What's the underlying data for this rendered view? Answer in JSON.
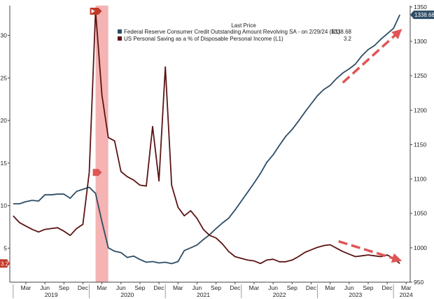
{
  "chart_data": {
    "type": "line",
    "legend": {
      "header": "Last Price",
      "placement": "top-center"
    },
    "series": [
      {
        "name": "Federal Reserve Consumer Credit Outstanding Amount Revolving SA - on 2/29/24 (R1)",
        "last_value_label": "1338.68",
        "axis": "right",
        "color": "#2e4d66",
        "x": [
          "2019-01",
          "2019-02",
          "2019-03",
          "2019-04",
          "2019-05",
          "2019-06",
          "2019-07",
          "2019-08",
          "2019-09",
          "2019-10",
          "2019-11",
          "2019-12",
          "2020-01",
          "2020-02",
          "2020-03",
          "2020-04",
          "2020-05",
          "2020-06",
          "2020-07",
          "2020-08",
          "2020-09",
          "2020-10",
          "2020-11",
          "2020-12",
          "2021-01",
          "2021-02",
          "2021-03",
          "2021-04",
          "2021-05",
          "2021-06",
          "2021-07",
          "2021-08",
          "2021-09",
          "2021-10",
          "2021-11",
          "2021-12",
          "2022-01",
          "2022-02",
          "2022-03",
          "2022-04",
          "2022-05",
          "2022-06",
          "2022-07",
          "2022-08",
          "2022-09",
          "2022-10",
          "2022-11",
          "2022-12",
          "2023-01",
          "2023-02",
          "2023-03",
          "2023-04",
          "2023-05",
          "2023-06",
          "2023-07",
          "2023-08",
          "2023-09",
          "2023-10",
          "2023-11",
          "2023-12",
          "2024-01",
          "2024-02"
        ],
        "values": [
          1064,
          1064,
          1067,
          1069,
          1068,
          1077,
          1077,
          1078,
          1078,
          1072,
          1082,
          1085,
          1088,
          1079,
          1038,
          1000,
          995,
          993,
          986,
          988,
          983,
          979,
          980,
          978,
          979,
          977,
          980,
          996,
          1000,
          1004,
          1012,
          1019,
          1028,
          1036,
          1043,
          1055,
          1068,
          1081,
          1094,
          1108,
          1124,
          1135,
          1149,
          1162,
          1172,
          1184,
          1197,
          1209,
          1221,
          1230,
          1236,
          1246,
          1254,
          1260,
          1267,
          1279,
          1288,
          1294,
          1303,
          1311,
          1319,
          1338.68
        ]
      },
      {
        "name": "US Personal Saving as a % of Disposable Personal Income (L1)",
        "last_value_label": "3.2",
        "axis": "left",
        "color": "#5c1414",
        "x": [
          "2019-01",
          "2019-02",
          "2019-03",
          "2019-04",
          "2019-05",
          "2019-06",
          "2019-07",
          "2019-08",
          "2019-09",
          "2019-10",
          "2019-11",
          "2019-12",
          "2020-01",
          "2020-02",
          "2020-03",
          "2020-04",
          "2020-05",
          "2020-06",
          "2020-07",
          "2020-08",
          "2020-09",
          "2020-10",
          "2020-11",
          "2020-12",
          "2021-01",
          "2021-02",
          "2021-03",
          "2021-04",
          "2021-05",
          "2021-06",
          "2021-07",
          "2021-08",
          "2021-09",
          "2021-10",
          "2021-11",
          "2021-12",
          "2022-01",
          "2022-02",
          "2022-03",
          "2022-04",
          "2022-05",
          "2022-06",
          "2022-07",
          "2022-08",
          "2022-09",
          "2022-10",
          "2022-11",
          "2022-12",
          "2023-01",
          "2023-02",
          "2023-03",
          "2023-04",
          "2023-05",
          "2023-06",
          "2023-07",
          "2023-08",
          "2023-09",
          "2023-10",
          "2023-11",
          "2023-12",
          "2024-01",
          "2024-02"
        ],
        "values": [
          8.8,
          8.0,
          7.6,
          7.2,
          6.9,
          7.2,
          7.3,
          7.4,
          7.0,
          6.5,
          7.3,
          7.8,
          13.9,
          32.9,
          23.0,
          18.0,
          17.6,
          14.0,
          13.4,
          13.0,
          12.4,
          12.3,
          19.3,
          12.9,
          26.3,
          12.4,
          9.8,
          8.8,
          9.4,
          8.5,
          7.2,
          6.5,
          6.2,
          5.5,
          4.6,
          4.0,
          3.8,
          3.6,
          3.5,
          3.2,
          3.6,
          3.7,
          3.4,
          3.4,
          3.6,
          4.0,
          4.5,
          4.8,
          5.1,
          5.3,
          5.4,
          5.0,
          4.6,
          4.3,
          4.0,
          4.1,
          4.2,
          4.1,
          4.0,
          4.2,
          3.8,
          3.2
        ]
      }
    ],
    "x_axis": {
      "range": [
        "2018-12-15",
        "2024-03-20"
      ],
      "month_ticks": [
        {
          "date": "2019-03",
          "label": "Mar"
        },
        {
          "date": "2019-06",
          "label": "Jun"
        },
        {
          "date": "2019-09",
          "label": "Sep"
        },
        {
          "date": "2019-12",
          "label": "Dec"
        },
        {
          "date": "2020-03",
          "label": "Mar"
        },
        {
          "date": "2020-06",
          "label": "Jun"
        },
        {
          "date": "2020-09",
          "label": "Sep"
        },
        {
          "date": "2020-12",
          "label": "Dec"
        },
        {
          "date": "2021-03",
          "label": "Mar"
        },
        {
          "date": "2021-06",
          "label": "Jun"
        },
        {
          "date": "2021-09",
          "label": "Sep"
        },
        {
          "date": "2021-12",
          "label": "Dec"
        },
        {
          "date": "2022-03",
          "label": "Mar"
        },
        {
          "date": "2022-06",
          "label": "Jun"
        },
        {
          "date": "2022-09",
          "label": "Sep"
        },
        {
          "date": "2022-12",
          "label": "Dec"
        },
        {
          "date": "2023-03",
          "label": "Mar"
        },
        {
          "date": "2023-06",
          "label": "Jun"
        },
        {
          "date": "2023-09",
          "label": "Sep"
        },
        {
          "date": "2023-12",
          "label": "Dec"
        },
        {
          "date": "2024-03",
          "label": "Mar"
        }
      ],
      "year_labels": [
        {
          "date": "2019-07",
          "label": "2019"
        },
        {
          "date": "2020-07",
          "label": "2020"
        },
        {
          "date": "2021-07",
          "label": "2021"
        },
        {
          "date": "2022-07",
          "label": "2022"
        },
        {
          "date": "2023-07",
          "label": "2023"
        },
        {
          "date": "2024-03",
          "label": "2024"
        }
      ]
    },
    "y_left": {
      "ylim": [
        1.0,
        33.5
      ],
      "ticks": [
        5,
        10,
        15,
        20,
        25,
        30
      ]
    },
    "y_right": {
      "ylim": [
        950,
        1352
      ],
      "ticks": [
        950,
        1000,
        1050,
        1100,
        1150,
        1200,
        1250,
        1300,
        1350
      ]
    },
    "grid": false,
    "highlight_band": {
      "start": "2020-02",
      "end": "2020-04",
      "color": "#f3a6a6"
    },
    "annotations": [
      {
        "kind": "up-arrow",
        "color": "#e05555",
        "from": "2023-05",
        "to": "2024-03"
      },
      {
        "kind": "down-arrow",
        "color": "#e05555",
        "from": "2023-05",
        "to": "2024-03"
      }
    ]
  }
}
